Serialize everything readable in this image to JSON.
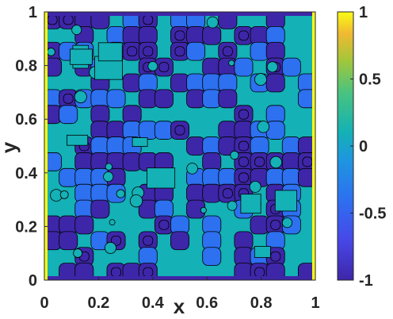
{
  "chart_data": {
    "type": "heatmap",
    "title": "",
    "xlabel": "x",
    "ylabel": "y",
    "xlim": [
      0,
      1
    ],
    "ylim": [
      0,
      1
    ],
    "x_ticks": [
      "0",
      "0.2",
      "0.4",
      "0.6",
      "0.8",
      "1"
    ],
    "x_tick_values": [
      0,
      0.2,
      0.4,
      0.6,
      0.8,
      1
    ],
    "y_ticks": [
      "0",
      "0.2",
      "0.4",
      "0.6",
      "0.8",
      "1"
    ],
    "y_tick_values": [
      0,
      0.2,
      0.4,
      0.6,
      0.8,
      1
    ],
    "colorbar": {
      "range": [
        -1,
        1
      ],
      "ticks": [
        "-1",
        "-0.5",
        "0",
        "0.5",
        "1"
      ],
      "tick_values": [
        -1,
        -0.5,
        0,
        0.5,
        1
      ],
      "colormap": "parula"
    },
    "contour_lines": true,
    "boundary_value": 1,
    "interior_value_range": [
      -1,
      0
    ],
    "colors": {
      "low": "#3e26a8",
      "mid_low": "#2d70f0",
      "mid": "#14b1b6",
      "high_mid": "#a4c63a",
      "high": "#f9fb15",
      "contour": "#000000"
    }
  }
}
